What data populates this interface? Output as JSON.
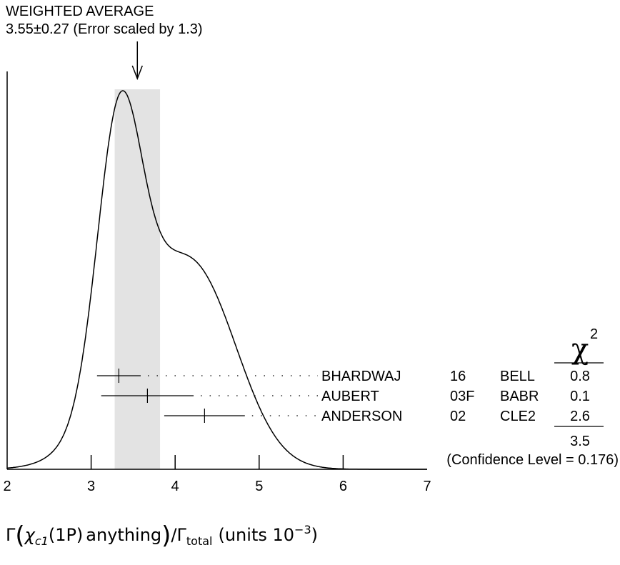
{
  "chart_data": {
    "type": "ideogram",
    "header_line1": "WEIGHTED AVERAGE",
    "header_line2": "3.55±0.27 (Error scaled by 1.3)",
    "weighted_average": {
      "value": 3.55,
      "error": 0.27,
      "scale_factor": 1.3
    },
    "xlim": [
      2,
      7
    ],
    "x_ticks": [
      "2",
      "3",
      "4",
      "5",
      "6",
      "7"
    ],
    "xlabel": {
      "gamma": "Γ",
      "chi": "χ",
      "sub": "c1",
      "paren": "(1P)",
      "word": "anything",
      "slash": "/Γ",
      "total": "total",
      "units": "(units 10",
      "exp": "−3",
      "close": ")"
    },
    "chi2_header": "χ",
    "chi2_sup": "2",
    "measurements": [
      {
        "author": "BHARDWAJ",
        "year": "16",
        "experiment": "BELL",
        "value": 3.33,
        "err_low": 0.26,
        "err_high": 0.26,
        "chi2": "0.8"
      },
      {
        "author": "AUBERT",
        "year": "03F",
        "experiment": "BABR",
        "value": 3.67,
        "err_low": 0.55,
        "err_high": 0.55,
        "chi2": "0.1"
      },
      {
        "author": "ANDERSON",
        "year": "02",
        "experiment": "CLE2",
        "value": 4.35,
        "err_low": 0.48,
        "err_high": 0.48,
        "chi2": "2.6"
      }
    ],
    "chi2_total": "3.5",
    "confidence_level": "(Confidence Level = 0.176)",
    "band_color": "#e3e3e3"
  }
}
